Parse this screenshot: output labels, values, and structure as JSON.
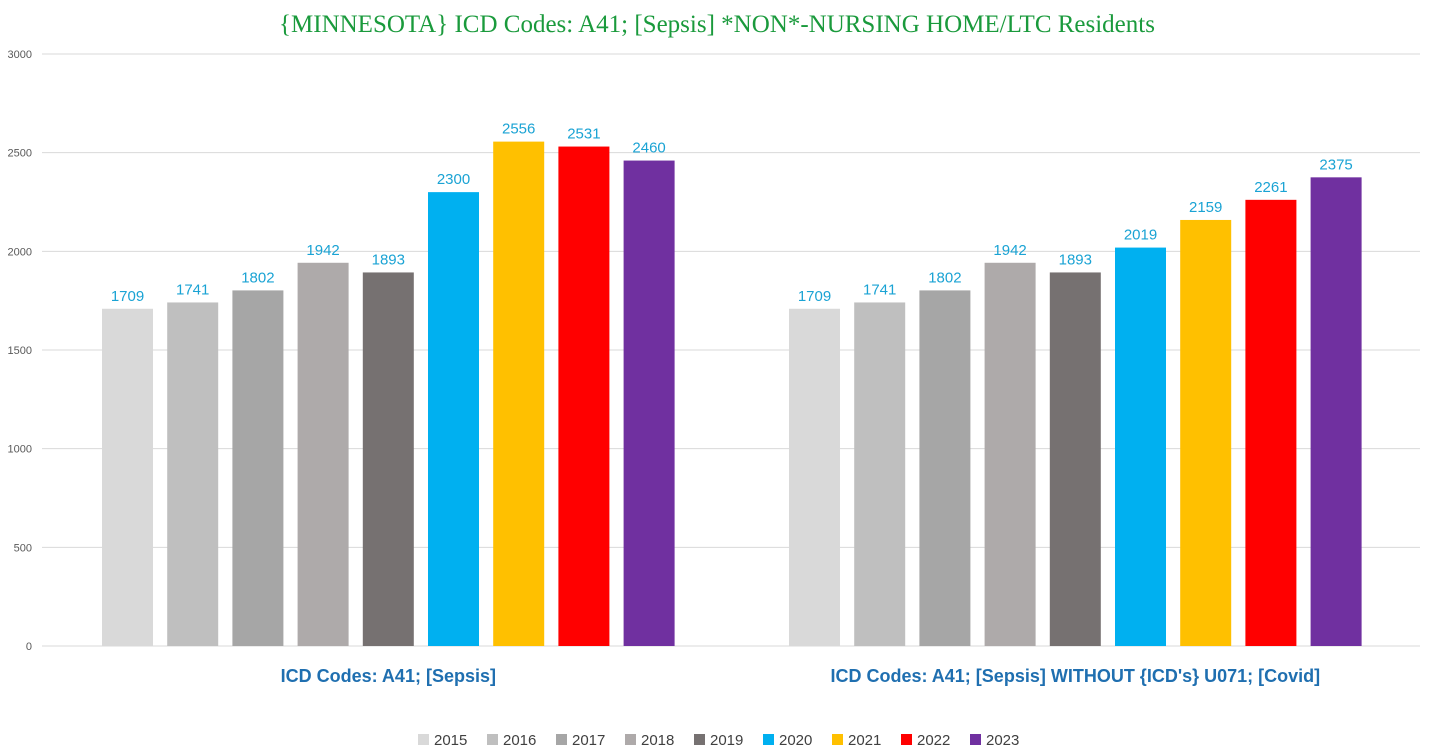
{
  "chart_data": {
    "type": "bar",
    "title": "{MINNESOTA}  ICD Codes: A41;  [Sepsis] *NON*-NURSING HOME/LTC Residents",
    "categories": [
      "ICD Codes: A41;  [Sepsis]",
      "ICD Codes: A41;  [Sepsis]  WITHOUT {ICD's} U071;  [Covid]"
    ],
    "ylim": [
      0,
      3000
    ],
    "yticks": [
      0,
      500,
      1000,
      1500,
      2000,
      2500,
      3000
    ],
    "grid": true,
    "legend_position": "bottom",
    "series": [
      {
        "name": "2015",
        "color": "#d9d9d9",
        "values": [
          1709,
          1709
        ]
      },
      {
        "name": "2016",
        "color": "#bfbfbf",
        "values": [
          1741,
          1741
        ]
      },
      {
        "name": "2017",
        "color": "#a6a6a6",
        "values": [
          1802,
          1802
        ]
      },
      {
        "name": "2018",
        "color": "#aeaaaa",
        "values": [
          1942,
          1942
        ]
      },
      {
        "name": "2019",
        "color": "#767171",
        "values": [
          1893,
          1893
        ]
      },
      {
        "name": "2020",
        "color": "#00b0f0",
        "values": [
          2300,
          2019
        ]
      },
      {
        "name": "2021",
        "color": "#ffc000",
        "values": [
          2556,
          2159
        ]
      },
      {
        "name": "2022",
        "color": "#ff0000",
        "values": [
          2531,
          2261
        ]
      },
      {
        "name": "2023",
        "color": "#7030a0",
        "values": [
          2460,
          2375
        ]
      }
    ]
  }
}
